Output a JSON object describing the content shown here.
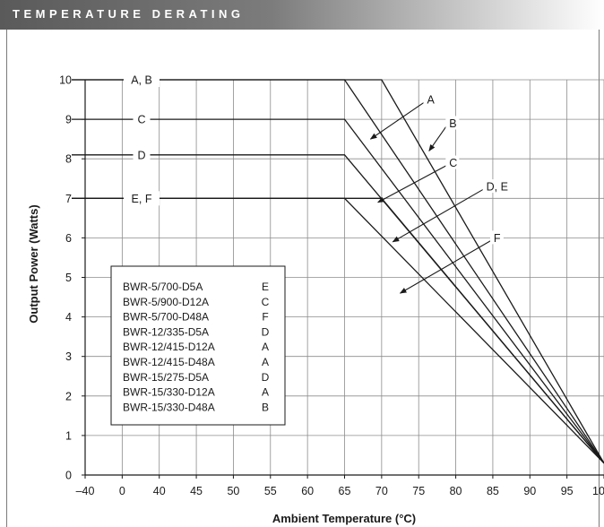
{
  "header": {
    "title": "TEMPERATURE DERATING"
  },
  "chart_data": {
    "type": "line",
    "title": "",
    "xlabel": "Ambient Temperature (°C)",
    "ylabel": "Output Power (Watts)",
    "x_ticks": [
      "–40",
      "0",
      "40",
      "45",
      "50",
      "55",
      "60",
      "65",
      "70",
      "75",
      "80",
      "85",
      "90",
      "95",
      "10"
    ],
    "y_ticks": [
      "0",
      "1",
      "2",
      "3",
      "4",
      "5",
      "6",
      "7",
      "8",
      "9",
      "10"
    ],
    "ylim": [
      0,
      10
    ],
    "grid": true,
    "series": [
      {
        "name": "A",
        "flat_power": 10,
        "derating_start_c": 65,
        "end_c": 100,
        "end_power": 0.3
      },
      {
        "name": "B",
        "flat_power": 10,
        "derating_start_c": 70,
        "end_c": 100,
        "end_power": 0.3
      },
      {
        "name": "C",
        "flat_power": 9,
        "derating_start_c": 65,
        "end_c": 100,
        "end_power": 0.3
      },
      {
        "name": "D",
        "flat_power": 8.1,
        "derating_start_c": 65,
        "end_c": 100,
        "end_power": 0.3
      },
      {
        "name": "E",
        "flat_power": 7,
        "derating_start_c": 70,
        "end_c": 100,
        "end_power": 0.3
      },
      {
        "name": "F",
        "flat_power": 7,
        "derating_start_c": 65,
        "end_c": 100,
        "end_power": 0.3
      }
    ],
    "annotations": {
      "flat_labels": [
        {
          "text": "A, B",
          "power": 10
        },
        {
          "text": "C",
          "power": 9
        },
        {
          "text": "D",
          "power": 8.1
        },
        {
          "text": "E, F",
          "power": 7
        }
      ],
      "slope_labels": [
        {
          "text": "A",
          "label_c": 76,
          "label_p": 9.5,
          "arrow_c": 68.5,
          "arrow_p": 8.5
        },
        {
          "text": "B",
          "label_c": 79,
          "label_p": 8.9,
          "arrow_c": 76.4,
          "arrow_p": 8.2
        },
        {
          "text": "C",
          "label_c": 79,
          "label_p": 7.9,
          "arrow_c": 69.5,
          "arrow_p": 6.9
        },
        {
          "text": "D, E",
          "label_c": 84,
          "label_p": 7.3,
          "arrow_c": 71.5,
          "arrow_p": 5.9
        },
        {
          "text": "F",
          "label_c": 85,
          "label_p": 6.0,
          "arrow_c": 72.5,
          "arrow_p": 4.6
        }
      ]
    },
    "legend": {
      "position": "lower-left",
      "entries": [
        {
          "model": "BWR-5/700-D5A",
          "curve": "E"
        },
        {
          "model": "BWR-5/900-D12A",
          "curve": "C"
        },
        {
          "model": "BWR-5/700-D48A",
          "curve": "F"
        },
        {
          "model": "BWR-12/335-D5A",
          "curve": "D"
        },
        {
          "model": "BWR-12/415-D12A",
          "curve": "A"
        },
        {
          "model": "BWR-12/415-D48A",
          "curve": "A"
        },
        {
          "model": "BWR-15/275-D5A",
          "curve": "D"
        },
        {
          "model": "BWR-15/330-D12A",
          "curve": "A"
        },
        {
          "model": "BWR-15/330-D48A",
          "curve": "B"
        }
      ]
    }
  }
}
